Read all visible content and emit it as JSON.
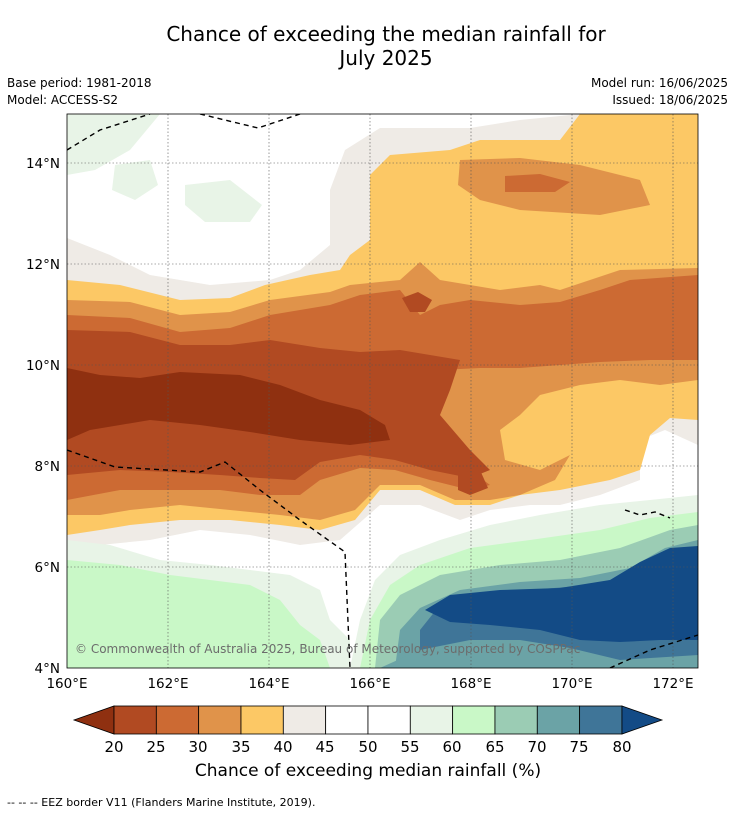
{
  "title_line1": "Chance of exceeding the median rainfall for",
  "title_line2": "July 2025",
  "meta": {
    "base_period": "Base period: 1981-2018",
    "model": "Model: ACCESS-S2",
    "model_run": "Model run: 16/06/2025",
    "issued": "Issued: 18/06/2025"
  },
  "map": {
    "lat_labels": [
      "14°N",
      "12°N",
      "10°N",
      "8°N",
      "6°N",
      "4°N"
    ],
    "lon_labels": [
      "160°E",
      "162°E",
      "164°E",
      "166°E",
      "168°E",
      "170°E",
      "172°E"
    ],
    "copyright": "© Commonwealth of Australia 2025, Bureau of Meteorology, supported by COSPPac"
  },
  "colorbar": {
    "ticks": [
      "20",
      "25",
      "30",
      "35",
      "40",
      "45",
      "50",
      "55",
      "60",
      "65",
      "70",
      "75",
      "80"
    ],
    "colors": [
      "#8f3010",
      "#b14a22",
      "#cc6a33",
      "#e0934a",
      "#fcc865",
      "#efebe6",
      "#ffffff",
      "#ffffff",
      "#e8f4e7",
      "#c9f8c7",
      "#9bccb4",
      "#6ba3a6",
      "#3f7598",
      "#134b86"
    ],
    "label": "Chance of exceeding median rainfall (%)"
  },
  "footer": "--  --  -- EEZ border V11 (Flanders Marine Institute, 2019)."
}
